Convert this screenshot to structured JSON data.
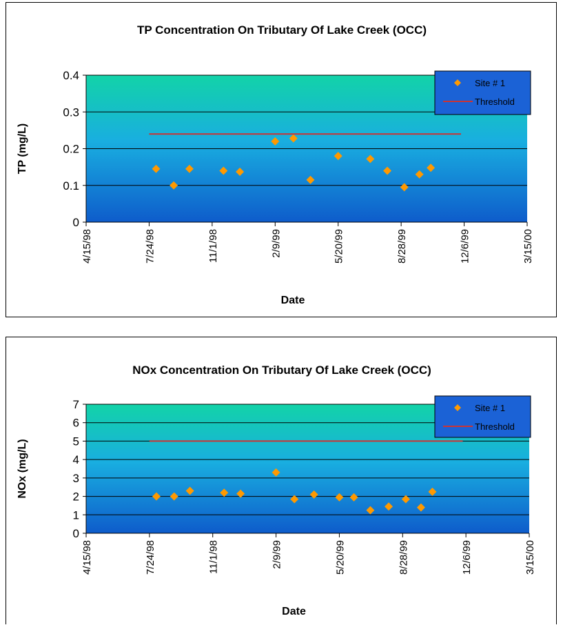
{
  "chart_data": [
    {
      "type": "scatter",
      "title": "TP Concentration On Tributary Of  Lake Creek (OCC)",
      "xlabel": "Date",
      "ylabel": "TP (mg/L)",
      "x_ticks": [
        "4/15/98",
        "7/24/98",
        "11/1/98",
        "2/9/99",
        "5/20/99",
        "8/28/99",
        "12/6/99",
        "3/15/00"
      ],
      "xlim": [
        "4/15/98",
        "3/15/00"
      ],
      "ylim": [
        0,
        0.4
      ],
      "y_ticks": [
        "0",
        "0.1",
        "0.2",
        "0.3",
        "0.4"
      ],
      "grid": true,
      "legend_position": "top-right",
      "series": [
        {
          "name": "Site # 1",
          "kind": "scatter",
          "color": "#FF9900",
          "points": [
            {
              "x": "1998-08-04",
              "y": 0.145
            },
            {
              "x": "1998-09-01",
              "y": 0.1
            },
            {
              "x": "1998-09-26",
              "y": 0.145
            },
            {
              "x": "1998-11-19",
              "y": 0.14
            },
            {
              "x": "1998-12-15",
              "y": 0.137
            },
            {
              "x": "1999-02-09",
              "y": 0.22
            },
            {
              "x": "1999-03-10",
              "y": 0.228
            },
            {
              "x": "1999-04-06",
              "y": 0.115
            },
            {
              "x": "1999-05-20",
              "y": 0.18
            },
            {
              "x": "1999-07-10",
              "y": 0.172
            },
            {
              "x": "1999-08-06",
              "y": 0.14
            },
            {
              "x": "1999-09-02",
              "y": 0.095
            },
            {
              "x": "1999-09-26",
              "y": 0.13
            },
            {
              "x": "1999-10-14",
              "y": 0.148
            }
          ]
        },
        {
          "name": "Threshold",
          "kind": "line",
          "color": "#CC3333",
          "points": [
            {
              "x": "1998-07-24",
              "y": 0.24
            },
            {
              "x": "1999-12-01",
              "y": 0.24
            }
          ]
        }
      ]
    },
    {
      "type": "scatter",
      "title": "NOx Concentration On Tributary Of Lake Creek (OCC)",
      "xlabel": "Date",
      "ylabel": "NOx (mg/L)",
      "x_ticks": [
        "4/15/98",
        "7/24/98",
        "11/1/98",
        "2/9/99",
        "5/20/99",
        "8/28/99",
        "12/6/99",
        "3/15/00"
      ],
      "xlim": [
        "4/15/98",
        "3/15/00"
      ],
      "ylim": [
        0,
        7
      ],
      "y_ticks": [
        "0",
        "1",
        "2",
        "3",
        "4",
        "5",
        "6",
        "7"
      ],
      "grid": true,
      "legend_position": "top-right",
      "series": [
        {
          "name": "Site # 1",
          "kind": "scatter",
          "color": "#FF9900",
          "points": [
            {
              "x": "1998-08-04",
              "y": 2.0
            },
            {
              "x": "1998-09-01",
              "y": 2.0
            },
            {
              "x": "1998-09-26",
              "y": 2.3
            },
            {
              "x": "1998-11-19",
              "y": 2.2
            },
            {
              "x": "1998-12-15",
              "y": 2.15
            },
            {
              "x": "1999-02-09",
              "y": 3.3
            },
            {
              "x": "1999-03-10",
              "y": 1.85
            },
            {
              "x": "1999-04-10",
              "y": 2.1
            },
            {
              "x": "1999-05-20",
              "y": 1.95
            },
            {
              "x": "1999-06-12",
              "y": 1.95
            },
            {
              "x": "1999-07-08",
              "y": 1.25
            },
            {
              "x": "1999-08-06",
              "y": 1.45
            },
            {
              "x": "1999-09-02",
              "y": 1.85
            },
            {
              "x": "1999-09-26",
              "y": 1.4
            },
            {
              "x": "1999-10-14",
              "y": 2.25
            }
          ]
        },
        {
          "name": "Threshold",
          "kind": "line",
          "color": "#CC3333",
          "points": [
            {
              "x": "1998-07-24",
              "y": 5.0
            },
            {
              "x": "1999-12-01",
              "y": 5.0
            }
          ]
        }
      ]
    }
  ]
}
